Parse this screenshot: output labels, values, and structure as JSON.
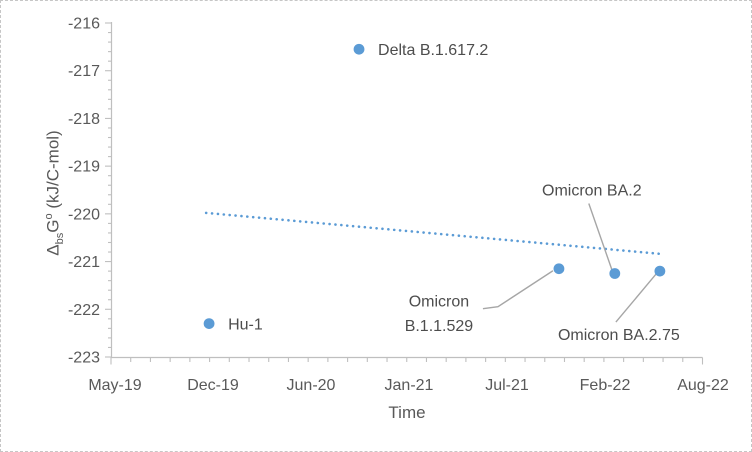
{
  "window": {
    "background": "#ffffff",
    "border_color": "#c6c6c6"
  },
  "chart_data": {
    "type": "scatter",
    "title": "",
    "xlabel": "Time",
    "ylabel_plain": "ΔbsG° (kJ/C-mol)",
    "ylabel_parts": {
      "prefix": "Δ",
      "sub": "bs",
      "mid": "G",
      "sup": "o",
      "rest": " (kJ/C-mol)"
    },
    "x_tick_labels": [
      "May-19",
      "Dec-19",
      "Jun-20",
      "Jan-21",
      "Jul-21",
      "Feb-22",
      "Aug-22"
    ],
    "y_ticks": [
      -216,
      -217,
      -218,
      -219,
      -220,
      -221,
      -222,
      -223
    ],
    "ylim": [
      -223,
      -216
    ],
    "xlim_units": [
      0,
      6
    ],
    "x_axis_note": "x expressed in tick-label intervals: 0=May-19, 1=Dec-19, 2=Jun-20, 3=Jan-21, 4=Jul-21, 5=Feb-22, 6=Aug-22",
    "grid": false,
    "legend": false,
    "points": [
      {
        "id": "hu1",
        "label": "Hu-1",
        "x": 0.96,
        "x_approx_date": "Dec-19",
        "y": -222.3
      },
      {
        "id": "delta",
        "label": "Delta B.1.617.2",
        "x": 2.49,
        "x_approx_date": "Oct-20",
        "y": -216.55
      },
      {
        "id": "b11529",
        "label": "Omicron B.1.1.529",
        "x": 4.53,
        "x_approx_date": "Nov-21",
        "y": -221.15
      },
      {
        "id": "ba2",
        "label": "Omicron BA.2",
        "x": 5.1,
        "x_approx_date": "Feb-22",
        "y": -221.25
      },
      {
        "id": "ba275",
        "label": "Omicron BA.2.75",
        "x": 5.56,
        "x_approx_date": "May-22",
        "y": -221.2
      }
    ],
    "trendline": {
      "style": "dotted",
      "x1": 0.93,
      "y1": -219.98,
      "x2": 5.57,
      "y2": -220.84
    },
    "annotations": [
      {
        "id": "delta",
        "lines": [
          "Delta B.1.617.2"
        ],
        "leader": false
      },
      {
        "id": "hu1",
        "lines": [
          "Hu-1"
        ],
        "leader": false
      },
      {
        "id": "b11529",
        "lines": [
          "Omicron",
          "B.1.1.529"
        ],
        "leader": true
      },
      {
        "id": "ba2",
        "lines": [
          "Omicron BA.2"
        ],
        "leader": true
      },
      {
        "id": "ba275",
        "lines": [
          "Omicron BA.2.75"
        ],
        "leader": true
      }
    ],
    "colors": {
      "marker": "#5B9BD5",
      "trendline": "#5B9BD5",
      "axis": "#BFBFBF",
      "tick_text": "#595959",
      "annotation_text": "#4d4d4d",
      "leader_line": "#A6A6A6"
    }
  }
}
